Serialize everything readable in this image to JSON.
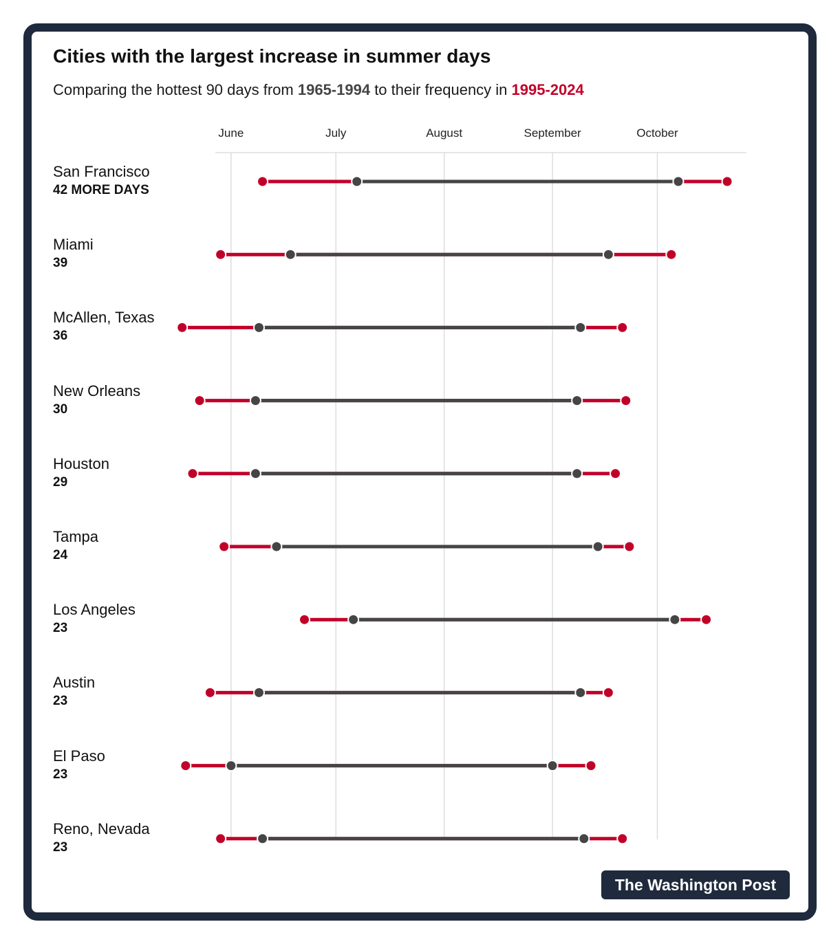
{
  "title": "Cities with the largest increase in summer days",
  "subtitle": {
    "prefix": "Comparing the hottest 90 days from ",
    "old_period": "1965-1994",
    "middle": " to their frequency in ",
    "new_period": "1995-2024"
  },
  "colors": {
    "old_period": "#454545",
    "new_period": "#c1002a",
    "gridline": "#dddddd",
    "frame": "#1f2a3d"
  },
  "source_badge": "The Washington Post",
  "chart_data": {
    "type": "dumbbell",
    "x_unit": "day of year",
    "xlim": [
      147.5,
      299.5
    ],
    "x_ticks": [
      {
        "label": "June",
        "value": 152
      },
      {
        "label": "July",
        "value": 182
      },
      {
        "label": "August",
        "value": 213
      },
      {
        "label": "September",
        "value": 244
      },
      {
        "label": "October",
        "value": 274
      }
    ],
    "series": [
      {
        "name": "1965-1994",
        "color": "#454545"
      },
      {
        "name": "1995-2024",
        "color": "#c1002a"
      }
    ],
    "rows": [
      {
        "city": "San Francisco",
        "label": "42 MORE DAYS",
        "increase": 42,
        "old_start": 188,
        "old_end": 280,
        "new_start": 161,
        "new_end": 294
      },
      {
        "city": "Miami",
        "label": "39",
        "increase": 39,
        "old_start": 169,
        "old_end": 260,
        "new_start": 149,
        "new_end": 278
      },
      {
        "city": "McAllen, Texas",
        "label": "36",
        "increase": 36,
        "old_start": 160,
        "old_end": 252,
        "new_start": 138,
        "new_end": 264
      },
      {
        "city": "New Orleans",
        "label": "30",
        "increase": 30,
        "old_start": 159,
        "old_end": 251,
        "new_start": 143,
        "new_end": 265
      },
      {
        "city": "Houston",
        "label": "29",
        "increase": 29,
        "old_start": 159,
        "old_end": 251,
        "new_start": 141,
        "new_end": 262
      },
      {
        "city": "Tampa",
        "label": "24",
        "increase": 24,
        "old_start": 165,
        "old_end": 257,
        "new_start": 150,
        "new_end": 266
      },
      {
        "city": "Los Angeles",
        "label": "23",
        "increase": 23,
        "old_start": 187,
        "old_end": 279,
        "new_start": 173,
        "new_end": 288
      },
      {
        "city": "Austin",
        "label": "23",
        "increase": 23,
        "old_start": 160,
        "old_end": 252,
        "new_start": 146,
        "new_end": 260
      },
      {
        "city": "El Paso",
        "label": "23",
        "increase": 23,
        "old_start": 152,
        "old_end": 244,
        "new_start": 139,
        "new_end": 255
      },
      {
        "city": "Reno, Nevada",
        "label": "23",
        "increase": 23,
        "old_start": 161,
        "old_end": 253,
        "new_start": 149,
        "new_end": 264
      }
    ]
  }
}
